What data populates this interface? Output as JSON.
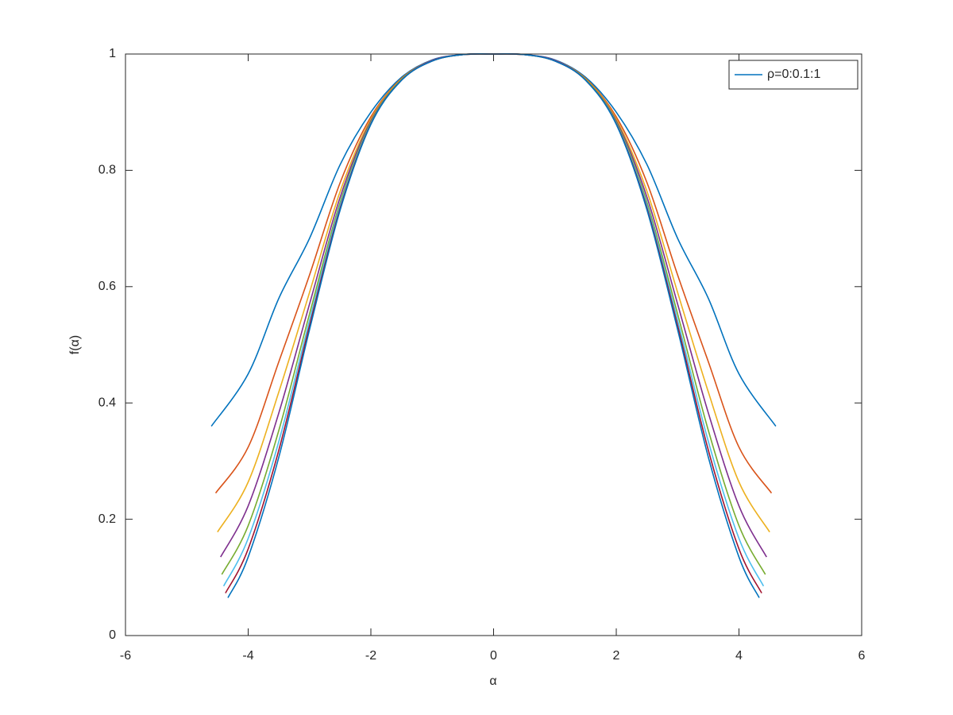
{
  "chart_data": {
    "type": "line",
    "xlabel": "α",
    "ylabel": "f(α)",
    "xlim": [
      -6,
      6
    ],
    "xticks": [
      -6,
      -4,
      -2,
      0,
      2,
      4,
      6
    ],
    "ylim": [
      0,
      1
    ],
    "yticks": [
      0,
      0.2,
      0.4,
      0.6,
      0.8,
      1
    ],
    "legend": "northeast",
    "series": [
      {
        "name": "ρ=0:0.1:1",
        "color": "#0072bd",
        "x": [
          -4.6,
          -4,
          -3.5,
          -3,
          -2.5,
          -2,
          -1.5,
          -1,
          -0.5,
          0,
          0.5,
          1,
          1.5,
          2,
          2.5,
          3,
          3.5,
          4,
          4.6
        ],
        "values": [
          0.36,
          0.45,
          0.58,
          0.683,
          0.81,
          0.9,
          0.96,
          0.99,
          0.999,
          1,
          0.999,
          0.99,
          0.96,
          0.9,
          0.81,
          0.683,
          0.58,
          0.45,
          0.36
        ]
      },
      {
        "color": "#d95319",
        "x": [
          -4.53,
          -4,
          -3.5,
          -3,
          -2.5,
          -2,
          -1.5,
          -1,
          -0.5,
          0,
          0.5,
          1,
          1.5,
          2,
          2.5,
          3,
          3.5,
          4,
          4.53
        ],
        "values": [
          0.245,
          0.324,
          0.471,
          0.62,
          0.779,
          0.892,
          0.958,
          0.989,
          0.999,
          1,
          0.999,
          0.989,
          0.958,
          0.892,
          0.779,
          0.62,
          0.471,
          0.324,
          0.245
        ]
      },
      {
        "color": "#edb120",
        "x": [
          -4.5,
          -4,
          -3.5,
          -3,
          -2.5,
          -2,
          -1.5,
          -1,
          -0.5,
          0,
          0.5,
          1,
          1.5,
          2,
          2.5,
          3,
          3.5,
          4,
          4.5
        ],
        "values": [
          0.178,
          0.264,
          0.419,
          0.59,
          0.764,
          0.888,
          0.957,
          0.989,
          0.999,
          1,
          0.999,
          0.989,
          0.957,
          0.888,
          0.764,
          0.59,
          0.419,
          0.264,
          0.178
        ]
      },
      {
        "color": "#7e2f8e",
        "x": [
          -4.45,
          -4,
          -3.5,
          -3,
          -2.5,
          -2,
          -1.5,
          -1,
          -0.5,
          0,
          0.5,
          1,
          1.5,
          2,
          2.5,
          3,
          3.5,
          4,
          4.45
        ],
        "values": [
          0.135,
          0.223,
          0.383,
          0.57,
          0.754,
          0.885,
          0.956,
          0.989,
          0.999,
          1,
          0.999,
          0.989,
          0.956,
          0.885,
          0.754,
          0.57,
          0.383,
          0.223,
          0.135
        ]
      },
      {
        "color": "#77ac30",
        "x": [
          -4.43,
          -4,
          -3.5,
          -3,
          -2.5,
          -2,
          -1.5,
          -1,
          -0.5,
          0,
          0.5,
          1,
          1.5,
          2,
          2.5,
          3,
          3.5,
          4,
          4.43
        ],
        "values": [
          0.105,
          0.189,
          0.353,
          0.553,
          0.745,
          0.883,
          0.956,
          0.988,
          0.999,
          1,
          0.999,
          0.988,
          0.956,
          0.883,
          0.745,
          0.553,
          0.353,
          0.189,
          0.105
        ]
      },
      {
        "color": "#4dbeee",
        "x": [
          -4.4,
          -4,
          -3.5,
          -3,
          -2.5,
          -2,
          -1.5,
          -1,
          -0.5,
          0,
          0.5,
          1,
          1.5,
          2,
          2.5,
          3,
          3.5,
          4,
          4.4
        ],
        "values": [
          0.085,
          0.167,
          0.334,
          0.542,
          0.74,
          0.881,
          0.955,
          0.988,
          0.999,
          1,
          0.999,
          0.988,
          0.955,
          0.881,
          0.74,
          0.542,
          0.334,
          0.167,
          0.085
        ]
      },
      {
        "color": "#a2142f",
        "x": [
          -4.37,
          -4,
          -3.5,
          -3,
          -2.5,
          -2,
          -1.5,
          -1,
          -0.5,
          0,
          0.5,
          1,
          1.5,
          2,
          2.5,
          3,
          3.5,
          4,
          4.37
        ],
        "values": [
          0.073,
          0.149,
          0.319,
          0.533,
          0.735,
          0.88,
          0.955,
          0.988,
          0.999,
          1,
          0.999,
          0.988,
          0.955,
          0.88,
          0.735,
          0.533,
          0.319,
          0.149,
          0.073
        ]
      },
      {
        "color": "#0072bd",
        "x": [
          -4.33,
          -4,
          -3.5,
          -3,
          -2.5,
          -2,
          -1.5,
          -1,
          -0.5,
          0,
          0.5,
          1,
          1.5,
          2,
          2.5,
          3,
          3.5,
          4,
          4.33
        ],
        "values": [
          0.065,
          0.135,
          0.307,
          0.526,
          0.732,
          0.879,
          0.955,
          0.988,
          0.999,
          1,
          0.999,
          0.988,
          0.955,
          0.879,
          0.732,
          0.526,
          0.307,
          0.135,
          0.065
        ]
      }
    ]
  }
}
